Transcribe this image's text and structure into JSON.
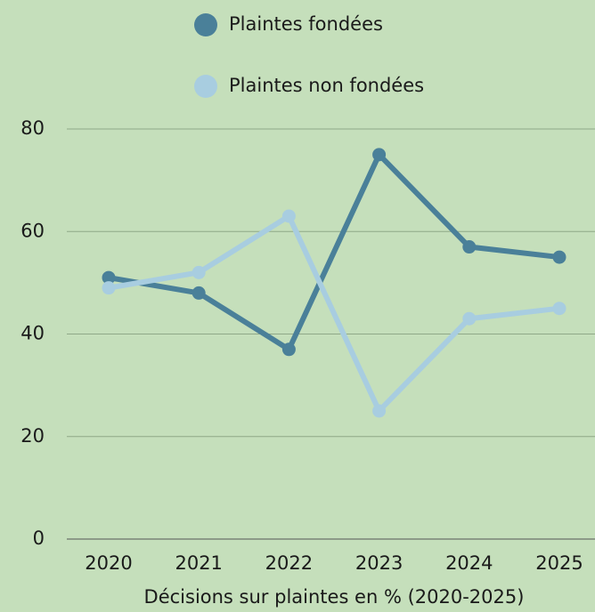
{
  "chart_data": {
    "type": "line",
    "x_label": "Décisions sur plaintes en % (2020-2025)",
    "categories": [
      "2020",
      "2021",
      "2022",
      "2023",
      "2024",
      "2025"
    ],
    "series": [
      {
        "name": "Plaintes fondées",
        "color": "#4a8099",
        "values": [
          51,
          48,
          37,
          75,
          57,
          55
        ]
      },
      {
        "name": "Plaintes non fondées",
        "color": "#a8cde0",
        "values": [
          49,
          52,
          63,
          25,
          43,
          45
        ]
      }
    ],
    "ylim": [
      0,
      80
    ],
    "yticks": [
      0,
      20,
      40,
      60,
      80
    ],
    "grid": true,
    "legend": "top"
  }
}
